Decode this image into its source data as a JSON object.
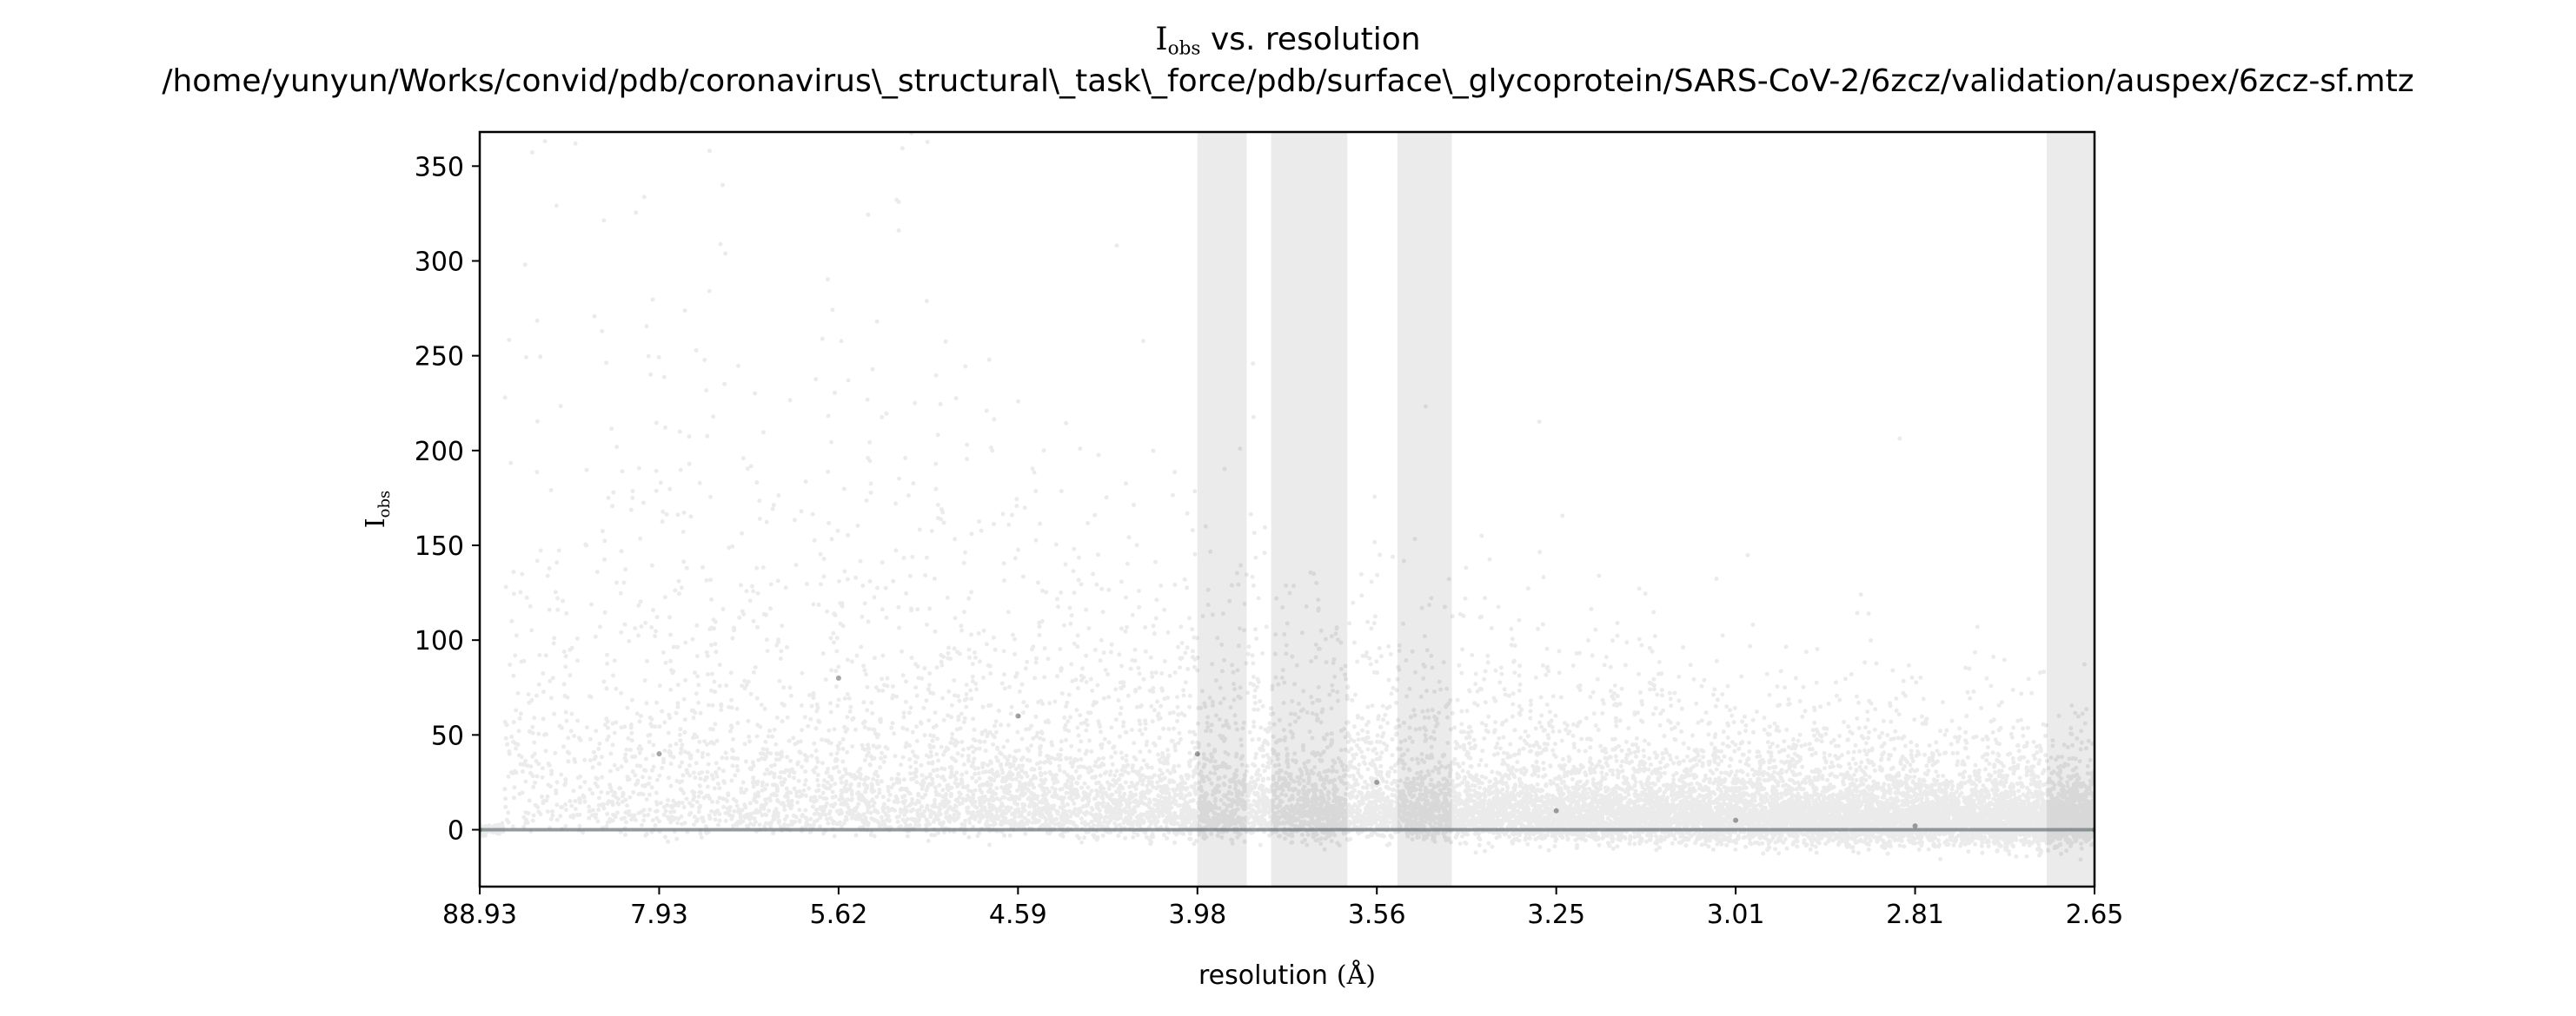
{
  "chart_data": {
    "type": "scatter",
    "title": "I_obs vs. resolution",
    "title_parts": {
      "symbol": "I",
      "subscript": "obs",
      "rest": " vs. resolution"
    },
    "subtitle": "/home/yunyun/Works/convid/pdb/coronavirus\\_structural\\_task\\_force/pdb/surface\\_glycoprotein/SARS-CoV-2/6zcz/validation/auspex/6zcz-sf.mtz",
    "xlabel": "resolution (Å)",
    "xlabel_parts": {
      "word": "resolution",
      "unit": "(Å)"
    },
    "ylabel": "I_obs",
    "ylabel_parts": {
      "symbol": "I",
      "subscript": "obs"
    },
    "x_ticks": [
      "88.93",
      "7.93",
      "5.62",
      "4.59",
      "3.98",
      "3.56",
      "3.25",
      "3.01",
      "2.81",
      "2.65"
    ],
    "y_ticks": [
      0,
      50,
      100,
      150,
      200,
      250,
      300,
      350
    ],
    "ylim": [
      -30,
      368
    ],
    "x_axis": "resolution in Å, ticks evenly spaced in 1/d² from 88.93 to 2.65",
    "marker_color": "#000000",
    "marker_opacity": 0.08,
    "reference_line": {
      "y": 0,
      "color": "#6d7b7b"
    },
    "highlight_bands": {
      "color": "#ebebeb",
      "ranges_resolution": [
        [
          3.98,
          3.85
        ],
        [
          3.79,
          3.62
        ],
        [
          3.52,
          3.42
        ],
        [
          2.69,
          2.65
        ]
      ]
    },
    "scatter_description": "dense cloud of reflections; spread of I_obs largest at low resolution (up to ~360) and narrowing toward 0 at high resolution",
    "sample_points": [
      {
        "x": "88.93",
        "y": 0
      },
      {
        "x": "7.93",
        "y": 40
      },
      {
        "x": "5.62",
        "y": 80
      },
      {
        "x": "4.59",
        "y": 60
      },
      {
        "x": "3.98",
        "y": 40
      },
      {
        "x": "3.56",
        "y": 25
      },
      {
        "x": "3.25",
        "y": 10
      },
      {
        "x": "3.01",
        "y": 5
      },
      {
        "x": "2.81",
        "y": 2
      },
      {
        "x": "2.65",
        "y": 0
      }
    ]
  }
}
